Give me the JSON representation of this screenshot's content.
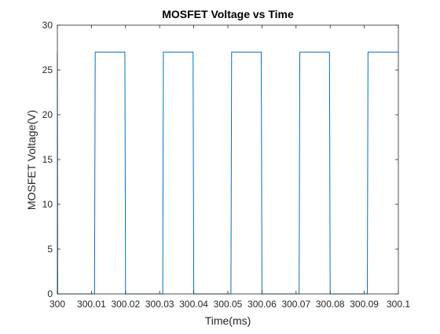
{
  "chart_data": {
    "type": "line",
    "title": "MOSFET Voltage vs Time",
    "xlabel": "Time(ms)",
    "ylabel": "MOSFET Voltage(V)",
    "xlim": [
      300,
      300.1
    ],
    "ylim": [
      0,
      30
    ],
    "x_ticks": [
      300,
      300.01,
      300.02,
      300.03,
      300.04,
      300.05,
      300.06,
      300.07,
      300.08,
      300.09,
      300.1
    ],
    "x_tick_labels": [
      "300",
      "300.01",
      "300.02",
      "300.03",
      "300.04",
      "300.05",
      "300.06",
      "300.07",
      "300.08",
      "300.09",
      "300.1"
    ],
    "y_ticks": [
      0,
      5,
      10,
      15,
      20,
      25,
      30
    ],
    "y_tick_labels": [
      "0",
      "5",
      "10",
      "15",
      "20",
      "25",
      "30"
    ],
    "grid": false,
    "line_color": "#0072BD",
    "series": [
      {
        "x": [
          300,
          300,
          300.0001,
          300.0002,
          300.0109,
          300.0111,
          300.0198,
          300.02,
          300.0309,
          300.0311,
          300.0398,
          300.04,
          300.0509,
          300.0511,
          300.0598,
          300.06,
          300.0709,
          300.0711,
          300.0798,
          300.08,
          300.0909,
          300.0911,
          300.1
        ],
        "y": [
          27,
          27,
          0.1,
          0,
          0,
          27,
          27,
          0,
          0,
          27,
          27,
          0,
          0,
          27,
          27,
          0,
          0,
          27,
          27,
          0,
          0,
          27,
          27
        ]
      }
    ]
  }
}
